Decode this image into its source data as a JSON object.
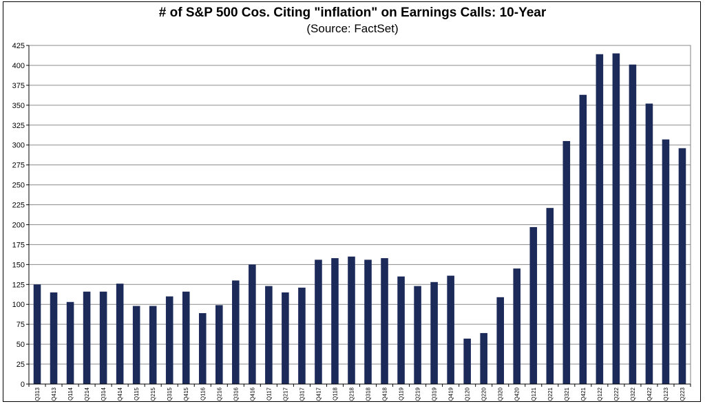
{
  "chart_data": {
    "type": "bar",
    "title": "# of S&P 500 Cos. Citing \"inflation\" on Earnings Calls: 10-Year",
    "subtitle": "(Source: FactSet)",
    "xlabel": "",
    "ylabel": "",
    "ylim": [
      0,
      425
    ],
    "yticks": [
      0,
      25,
      50,
      75,
      100,
      125,
      150,
      175,
      200,
      225,
      250,
      275,
      300,
      325,
      350,
      375,
      400,
      425
    ],
    "grid": true,
    "legend": "none",
    "bar_color": "#1c2a5a",
    "categories": [
      "Q313",
      "Q413",
      "Q114",
      "Q214",
      "Q314",
      "Q414",
      "Q115",
      "Q215",
      "Q315",
      "Q415",
      "Q116",
      "Q216",
      "Q316",
      "Q416",
      "Q117",
      "Q217",
      "Q317",
      "Q417",
      "Q118",
      "Q218",
      "Q318",
      "Q418",
      "Q119",
      "Q219",
      "Q319",
      "Q419",
      "Q120",
      "Q220",
      "Q320",
      "Q420",
      "Q121",
      "Q221",
      "Q321",
      "Q421",
      "Q122",
      "Q222",
      "Q322",
      "Q422",
      "Q123",
      "Q223"
    ],
    "values": [
      125,
      115,
      103,
      116,
      116,
      126,
      98,
      98,
      110,
      116,
      89,
      99,
      130,
      150,
      123,
      115,
      121,
      156,
      158,
      160,
      156,
      158,
      135,
      123,
      128,
      136,
      57,
      64,
      109,
      145,
      197,
      221,
      305,
      363,
      414,
      415,
      401,
      352,
      307,
      296
    ]
  }
}
